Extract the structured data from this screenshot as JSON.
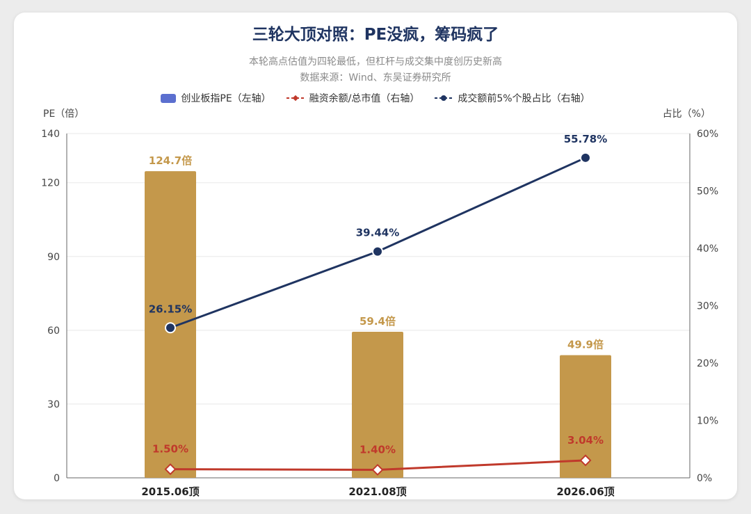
{
  "chart_data": {
    "type": "bar",
    "title": "三轮大顶对照：PE没疯，筹码疯了",
    "subtitle_1": "本轮高点估值为四轮最低，但杠杆与成交集中度创历史新高",
    "subtitle_2": "数据来源：Wind、东吴证券研究所",
    "ylabel_left": "PE（倍）",
    "ylabel_right": "占比（%）",
    "categories": [
      "2015.06顶",
      "2021.08顶",
      "2026.06顶"
    ],
    "ylim_left": [
      0,
      140
    ],
    "yticks_left": [
      0,
      30,
      60,
      90,
      120,
      140
    ],
    "ylim_right": [
      0,
      60
    ],
    "yticks_right": [
      "0%",
      "10%",
      "20%",
      "30%",
      "40%",
      "50%",
      "60%"
    ],
    "grid": true,
    "legend_position": "top-center",
    "series": [
      {
        "name": "创业板指PE（左轴）",
        "type": "bar",
        "axis": "left",
        "values": [
          124.7,
          59.4,
          49.9
        ],
        "labels": [
          "124.7倍",
          "59.4倍",
          "49.9倍"
        ],
        "color": "#c4984b"
      },
      {
        "name": "融资余额/总市值（右轴）",
        "type": "line",
        "axis": "right",
        "values": [
          1.5,
          1.4,
          3.04
        ],
        "labels": [
          "1.50%",
          "1.40%",
          "3.04%"
        ],
        "color": "#c0392b"
      },
      {
        "name": "成交额前5%个股占比（右轴）",
        "type": "line",
        "axis": "right",
        "values": [
          26.15,
          39.44,
          55.78
        ],
        "labels": [
          "26.15%",
          "39.44%",
          "55.78%"
        ],
        "color": "#1f3461"
      }
    ],
    "legend_bar_color": "#5b6fcf"
  }
}
